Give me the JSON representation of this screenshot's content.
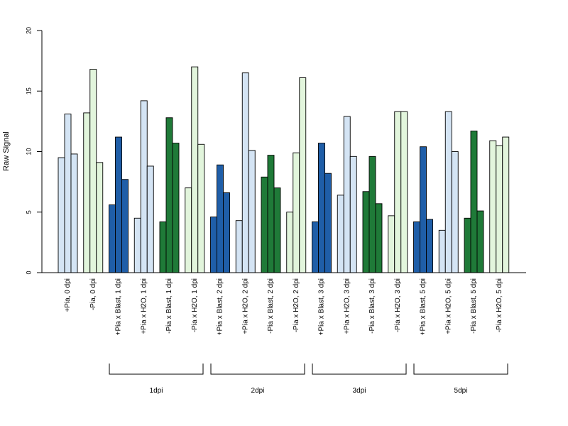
{
  "chart_data": {
    "type": "bar",
    "title": "",
    "xlabel": "",
    "ylabel": "Raw Signal",
    "ylim": [
      0,
      20
    ],
    "yticks": [
      0,
      5,
      10,
      15,
      20
    ],
    "grid": false,
    "legend": "none",
    "colors": {
      "light_blue": "#d4e4f4",
      "dark_blue": "#1f5ea8",
      "light_green": "#e2f5dc",
      "dark_green": "#1f7a38"
    },
    "categories": [
      {
        "label": "+Pia, 0 dpi",
        "color": "light_blue",
        "values": [
          9.5,
          13.1,
          9.8
        ]
      },
      {
        "label": "-Pia, 0 dpi",
        "color": "light_green",
        "values": [
          13.2,
          16.8,
          9.1
        ]
      },
      {
        "label": "+Pia x Blast, 1 dpi",
        "color": "dark_blue",
        "values": [
          5.6,
          11.2,
          7.7
        ]
      },
      {
        "label": "+Pia x H2O, 1 dpi",
        "color": "light_blue",
        "values": [
          4.5,
          14.2,
          8.8
        ]
      },
      {
        "label": "-Pia x Blast, 1 dpi",
        "color": "dark_green",
        "values": [
          4.2,
          12.8,
          10.7
        ]
      },
      {
        "label": "-Pia x H2O, 1 dpi",
        "color": "light_green",
        "values": [
          7.0,
          17.0,
          10.6
        ]
      },
      {
        "label": "+Pia x Blast, 2 dpi",
        "color": "dark_blue",
        "values": [
          4.6,
          8.9,
          6.6
        ]
      },
      {
        "label": "+Pia x H2O, 2 dpi",
        "color": "light_blue",
        "values": [
          4.3,
          16.5,
          10.1
        ]
      },
      {
        "label": "-Pia x Blast, 2 dpi",
        "color": "dark_green",
        "values": [
          7.9,
          9.7,
          7.0
        ]
      },
      {
        "label": "-Pia x H2O, 2 dpi",
        "color": "light_green",
        "values": [
          5.0,
          9.9,
          16.1
        ]
      },
      {
        "label": "+Pia x Blast, 3 dpi",
        "color": "dark_blue",
        "values": [
          4.2,
          10.7,
          8.2
        ]
      },
      {
        "label": "+Pia x H2O, 3 dpi",
        "color": "light_blue",
        "values": [
          6.4,
          12.9,
          9.6
        ]
      },
      {
        "label": "-Pia x Blast, 3 dpi",
        "color": "dark_green",
        "values": [
          6.7,
          9.6,
          5.7
        ]
      },
      {
        "label": "-Pia x H2O, 3 dpi",
        "color": "light_green",
        "values": [
          4.7,
          13.3,
          13.3
        ]
      },
      {
        "label": "+Pia x Blast, 5 dpi",
        "color": "dark_blue",
        "values": [
          4.2,
          10.4,
          4.4
        ]
      },
      {
        "label": "+Pia x H2O, 5 dpi",
        "color": "light_blue",
        "values": [
          3.5,
          13.3,
          10.0
        ]
      },
      {
        "label": "-Pia x Blast, 5 dpi",
        "color": "dark_green",
        "values": [
          4.5,
          11.7,
          5.1
        ]
      },
      {
        "label": "-Pia x H2O, 5 dpi",
        "color": "light_green",
        "values": [
          10.9,
          10.5,
          11.2
        ]
      }
    ],
    "groups": [
      {
        "label": "1dpi",
        "from": 2,
        "to": 5
      },
      {
        "label": "2dpi",
        "from": 6,
        "to": 9
      },
      {
        "label": "3dpi",
        "from": 10,
        "to": 13
      },
      {
        "label": "5dpi",
        "from": 14,
        "to": 17
      }
    ]
  }
}
